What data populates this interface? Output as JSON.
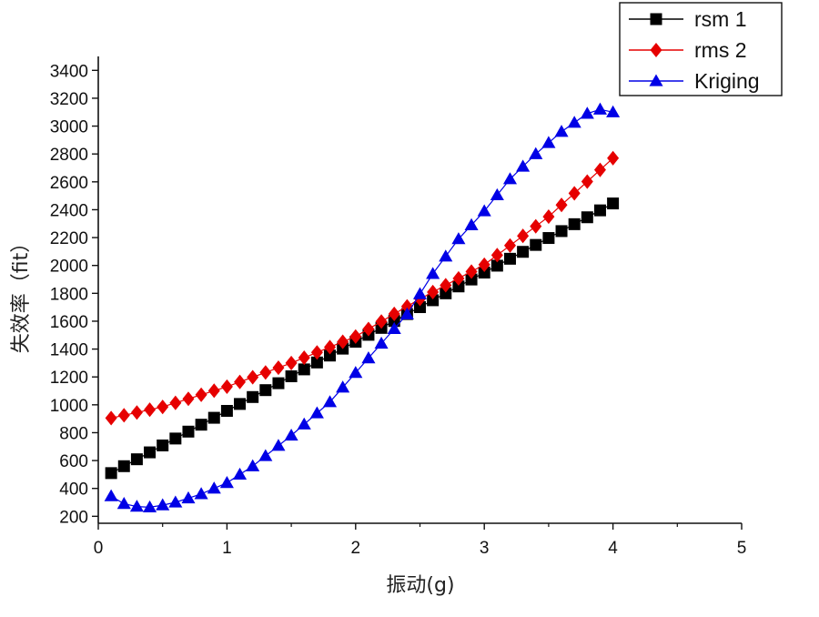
{
  "chart_data": {
    "type": "line",
    "title": "",
    "xlabel": "振动(g)",
    "ylabel": "失效率（fit）",
    "xlim": [
      0,
      5
    ],
    "ylim": [
      150,
      3500
    ],
    "x_ticks": [
      0,
      1,
      2,
      3,
      4,
      5
    ],
    "x_tick_labels": [
      "0",
      "1",
      "2",
      "3",
      "4",
      "5"
    ],
    "y_ticks": [
      200,
      400,
      600,
      800,
      1000,
      1200,
      1400,
      1600,
      1800,
      2000,
      2200,
      2400,
      2600,
      2800,
      3000,
      3200,
      3400
    ],
    "y_tick_labels": [
      "200",
      "400",
      "600",
      "800",
      "1000",
      "1200",
      "1400",
      "1600",
      "1800",
      "2000",
      "2200",
      "2400",
      "2600",
      "2800",
      "3000",
      "3200",
      "3400"
    ],
    "grid": false,
    "legend_position": "top-right",
    "series": [
      {
        "name": "rsm 1",
        "marker": "square",
        "color": "#000000",
        "x_range": [
          0.1,
          4.0
        ],
        "n_points": 40,
        "anchors": [
          [
            0.1,
            510
          ],
          [
            4.0,
            2445
          ]
        ]
      },
      {
        "name": "rms 2",
        "marker": "diamond",
        "color": "#e60000",
        "x_range": [
          0.1,
          4.0
        ],
        "n_points": 40,
        "anchors": [
          [
            0.1,
            905
          ],
          [
            0.5,
            985
          ],
          [
            1.0,
            1130
          ],
          [
            1.5,
            1300
          ],
          [
            2.0,
            1490
          ],
          [
            2.5,
            1760
          ],
          [
            3.0,
            2005
          ],
          [
            3.5,
            2350
          ],
          [
            4.0,
            2770
          ]
        ]
      },
      {
        "name": "Kriging",
        "marker": "triangle",
        "color": "#0000e6",
        "x_range": [
          0.1,
          4.0
        ],
        "n_points": 40,
        "anchors": [
          [
            0.1,
            345
          ],
          [
            0.2,
            290
          ],
          [
            0.3,
            270
          ],
          [
            0.4,
            265
          ],
          [
            0.5,
            280
          ],
          [
            0.6,
            300
          ],
          [
            0.8,
            360
          ],
          [
            1.0,
            440
          ],
          [
            1.2,
            560
          ],
          [
            1.5,
            780
          ],
          [
            1.8,
            1020
          ],
          [
            2.0,
            1230
          ],
          [
            2.2,
            1440
          ],
          [
            2.4,
            1650
          ],
          [
            2.6,
            1940
          ],
          [
            2.8,
            2190
          ],
          [
            3.0,
            2390
          ],
          [
            3.2,
            2620
          ],
          [
            3.4,
            2800
          ],
          [
            3.6,
            2960
          ],
          [
            3.8,
            3090
          ],
          [
            3.9,
            3120
          ],
          [
            4.0,
            3100
          ]
        ]
      }
    ]
  }
}
